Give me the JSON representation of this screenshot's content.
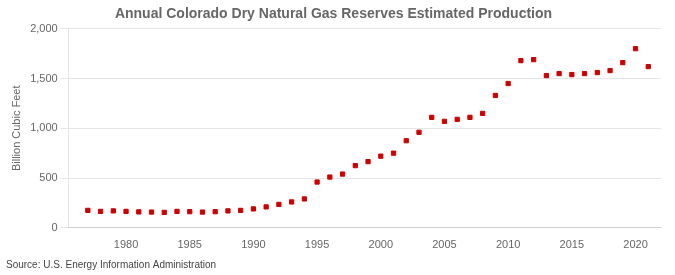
{
  "chart_data": {
    "type": "scatter",
    "title": "Annual Colorado Dry Natural Gas Reserves Estimated Production",
    "ylabel": "Billion Cubic Feet",
    "source": "Source: U.S. Energy Information Administration",
    "x": [
      1977,
      1978,
      1979,
      1980,
      1981,
      1982,
      1983,
      1984,
      1985,
      1986,
      1987,
      1988,
      1989,
      1990,
      1991,
      1992,
      1993,
      1994,
      1995,
      1996,
      1997,
      1998,
      1999,
      2000,
      2001,
      2002,
      2003,
      2004,
      2005,
      2006,
      2007,
      2008,
      2009,
      2010,
      2011,
      2012,
      2013,
      2014,
      2015,
      2016,
      2017,
      2018,
      2019,
      2020,
      2021
    ],
    "values": [
      175,
      165,
      170,
      165,
      160,
      158,
      155,
      165,
      162,
      158,
      162,
      170,
      175,
      190,
      210,
      235,
      260,
      290,
      460,
      510,
      540,
      625,
      665,
      720,
      750,
      875,
      960,
      1110,
      1070,
      1090,
      1110,
      1150,
      1330,
      1450,
      1680,
      1690,
      1530,
      1550,
      1540,
      1550,
      1560,
      1580,
      1660,
      1800,
      1620
    ],
    "color": "#cc0000",
    "marker": "square",
    "xlim": [
      1975.5,
      2022
    ],
    "xticks": [
      1980,
      1985,
      1990,
      1995,
      2000,
      2005,
      2010,
      2015,
      2020
    ],
    "ylim": [
      0,
      2000
    ],
    "yticks": [
      0,
      500,
      {
        "value": 1000,
        "label": "1,000"
      },
      {
        "value": 1500,
        "label": "1,500"
      },
      {
        "value": 2000,
        "label": "2,000"
      }
    ],
    "grid": true
  }
}
